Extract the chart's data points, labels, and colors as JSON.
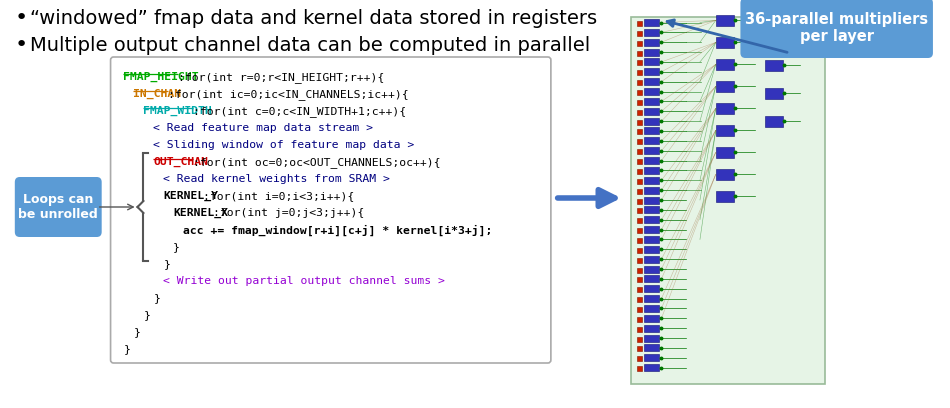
{
  "bullet1": "“windowed” fmap data and kernel data stored in registers",
  "bullet2": "Multiple output channel data can be computed in parallel",
  "bullet_fontsize": 14,
  "bg_color": "#ffffff",
  "code_box_color": "#ffffff",
  "code_box_border": "#aaaaaa",
  "loops_label": "Loops can\nbe unrolled",
  "loops_label_color": "#ffffff",
  "loops_label_bg": "#5b9bd5",
  "callout_text": "36-parallel multipliers\nper layer",
  "callout_bg": "#5b9bd5",
  "callout_text_color": "#ffffff",
  "arrow_color": "#4472c4",
  "code_lines": [
    {
      "indent": 0,
      "tokens": [
        {
          "text": "FMAP_HEIGHT",
          "color": "#00aa00",
          "bold": true,
          "underline": true
        },
        {
          "text": ":for(int r=0;r<IN_HEIGHT;r++){",
          "color": "#000000",
          "bold": false,
          "underline": false
        }
      ]
    },
    {
      "indent": 2,
      "tokens": [
        {
          "text": "IN_CHAN",
          "color": "#cc7700",
          "bold": true,
          "underline": true
        },
        {
          "text": ":for(int ic=0;ic<IN_CHANNELS;ic++){",
          "color": "#000000",
          "bold": false,
          "underline": false
        }
      ]
    },
    {
      "indent": 4,
      "tokens": [
        {
          "text": "FMAP_WIDTH",
          "color": "#00aaaa",
          "bold": true,
          "underline": true
        },
        {
          "text": ":for(int c=0;c<IN_WIDTH+1;c++){",
          "color": "#000000",
          "bold": false,
          "underline": false
        }
      ]
    },
    {
      "indent": 6,
      "tokens": [
        {
          "text": "< Read feature map data stream >",
          "color": "#000080",
          "bold": false,
          "underline": false
        }
      ]
    },
    {
      "indent": 6,
      "tokens": [
        {
          "text": "< Sliding window of feature map data >",
          "color": "#000080",
          "bold": false,
          "underline": false
        }
      ]
    },
    {
      "indent": 6,
      "tokens": [
        {
          "text": "OUT_CHAN",
          "color": "#cc0000",
          "bold": true,
          "underline": true
        },
        {
          "text": ":for(int oc=0;oc<OUT_CHANNELS;oc++){",
          "color": "#000000",
          "bold": false,
          "underline": false
        }
      ]
    },
    {
      "indent": 8,
      "tokens": [
        {
          "text": "< Read kernel weights from SRAM >",
          "color": "#000080",
          "bold": false,
          "underline": false
        }
      ]
    },
    {
      "indent": 8,
      "tokens": [
        {
          "text": "KERNEL_Y",
          "color": "#000000",
          "bold": true,
          "underline": false
        },
        {
          "text": ":for(int i=0;i<3;i++){",
          "color": "#000000",
          "bold": false,
          "underline": false
        }
      ]
    },
    {
      "indent": 10,
      "tokens": [
        {
          "text": "KERNEL_X",
          "color": "#000000",
          "bold": true,
          "underline": false
        },
        {
          "text": ":for(int j=0;j<3;j++){",
          "color": "#000000",
          "bold": false,
          "underline": false
        }
      ]
    },
    {
      "indent": 12,
      "tokens": [
        {
          "text": "acc += fmap_window[r+i][c+j] * kernel[i*3+j];",
          "color": "#000000",
          "bold": true,
          "underline": false
        }
      ]
    },
    {
      "indent": 10,
      "tokens": [
        {
          "text": "}",
          "color": "#000000",
          "bold": false,
          "underline": false
        }
      ]
    },
    {
      "indent": 8,
      "tokens": [
        {
          "text": "}",
          "color": "#000000",
          "bold": false,
          "underline": false
        }
      ]
    },
    {
      "indent": 8,
      "tokens": [
        {
          "text": "< Write out partial output channel sums >",
          "color": "#9400d3",
          "bold": false,
          "underline": false
        }
      ]
    },
    {
      "indent": 6,
      "tokens": [
        {
          "text": "}",
          "color": "#000000",
          "bold": false,
          "underline": false
        }
      ]
    },
    {
      "indent": 4,
      "tokens": [
        {
          "text": "}",
          "color": "#000000",
          "bold": false,
          "underline": false
        }
      ]
    },
    {
      "indent": 2,
      "tokens": [
        {
          "text": "}",
          "color": "#000000",
          "bold": false,
          "underline": false
        }
      ]
    },
    {
      "indent": 0,
      "tokens": [
        {
          "text": "}",
          "color": "#000000",
          "bold": false,
          "underline": false
        }
      ]
    }
  ]
}
